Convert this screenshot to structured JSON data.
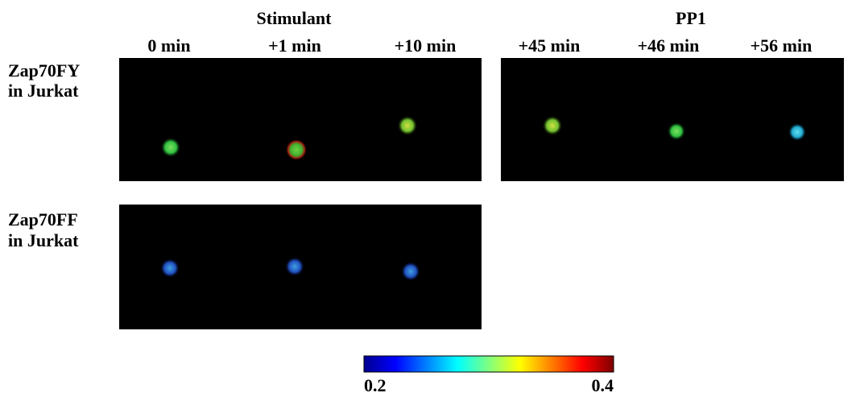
{
  "column_groups": [
    "Stimulant",
    "PP1"
  ],
  "columns": [
    "0 min",
    "+1 min",
    "+10 min",
    "+45 min",
    "+46 min",
    "+56 min"
  ],
  "rows": [
    [
      "Zap70FY",
      "in Jurkat"
    ],
    [
      "Zap70FF",
      "in Jurkat"
    ]
  ],
  "colorbar": {
    "ticks": [
      0.2,
      0.4
    ]
  }
}
